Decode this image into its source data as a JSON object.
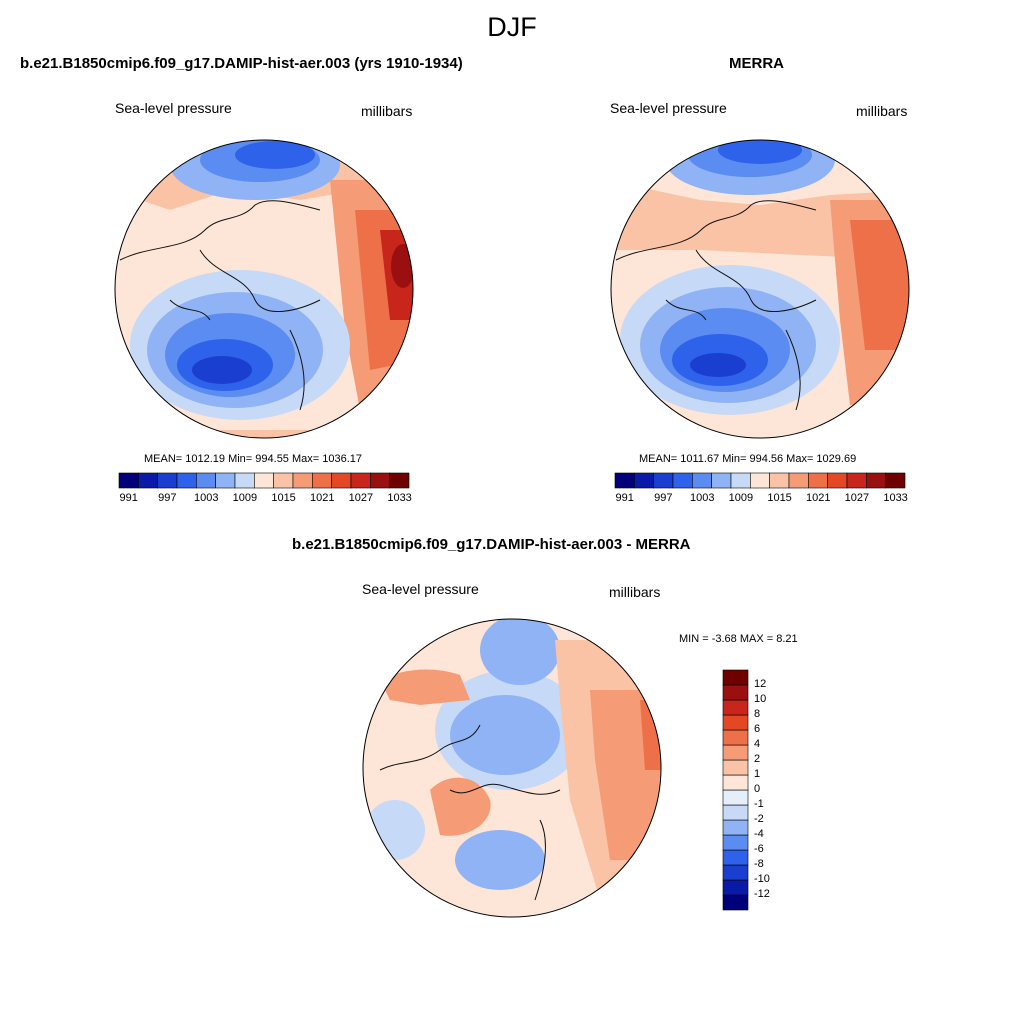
{
  "figure": {
    "season": "DJF"
  },
  "panels": [
    {
      "title": "b.e21.B1850cmip6.f09_g17.DAMIP-hist-aer.003 (yrs 1910-1934)",
      "left_label": "Sea-level pressure",
      "right_label": "millibars",
      "stats": "MEAN= 1012.19  Min= 994.55  Max= 1036.17",
      "stats_values": {
        "mean": 1012.19,
        "min": 994.55,
        "max": 1036.17
      }
    },
    {
      "title": "MERRA",
      "left_label": "Sea-level pressure",
      "right_label": "millibars",
      "stats": "MEAN= 1011.67  Min= 994.56  Max= 1029.69",
      "stats_values": {
        "mean": 1011.67,
        "min": 994.56,
        "max": 1029.69
      }
    },
    {
      "title": "b.e21.B1850cmip6.f09_g17.DAMIP-hist-aer.003 - MERRA",
      "left_label": "Sea-level pressure",
      "right_label": "millibars",
      "stats": "MIN =  -3.68 MAX =   8.21",
      "stats_values": {
        "min": -3.68,
        "max": 8.21
      }
    }
  ],
  "colorbar_abs": {
    "colors": [
      "#00007a",
      "#0a1aa8",
      "#1a3fd0",
      "#2f62ea",
      "#5a8cf2",
      "#8fb3f5",
      "#c6d9f7",
      "#fde6d8",
      "#fbc3a6",
      "#f59b75",
      "#ee7048",
      "#e34723",
      "#c8261a",
      "#9a1010",
      "#6e0000"
    ],
    "tick_labels": [
      "991",
      "997",
      "1003",
      "1009",
      "1015",
      "1021",
      "1027",
      "1033"
    ]
  },
  "colorbar_diff": {
    "colors": [
      "#00007a",
      "#0a1aa8",
      "#1a3fd0",
      "#2f62ea",
      "#5a8cf2",
      "#8fb3f5",
      "#c6d9f7",
      "#e6eefa",
      "#fde6d8",
      "#fbc3a6",
      "#f59b75",
      "#ee7048",
      "#e34723",
      "#c8261a",
      "#9a1010",
      "#6e0000"
    ],
    "tick_labels": [
      "-12",
      "-10",
      "-8",
      "-6",
      "-4",
      "-2",
      "-1",
      "0",
      "1",
      "2",
      "4",
      "6",
      "8",
      "10",
      "12"
    ]
  }
}
